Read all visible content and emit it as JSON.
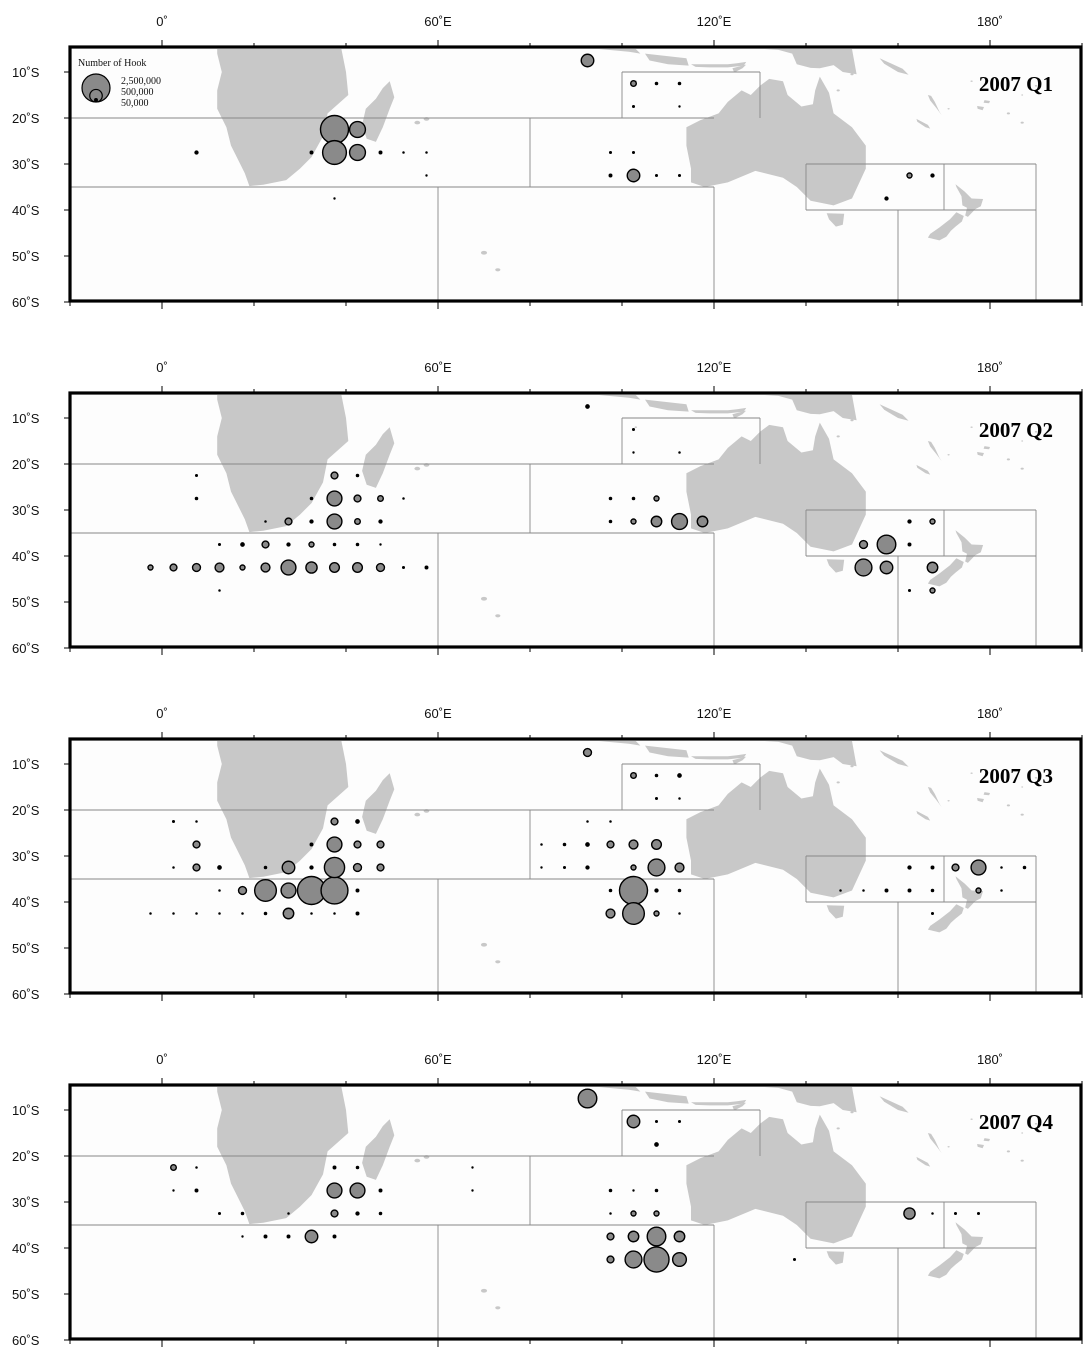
{
  "legend": {
    "title": "Number of Hook",
    "labels": [
      "2,500,000",
      "500,000",
      "50,000"
    ],
    "values": [
      2500000,
      500000,
      50000
    ]
  },
  "x_ticks": [
    "0˚",
    "60˚E",
    "120˚E",
    "180˚"
  ],
  "y_ticks": [
    "10˚S",
    "20˚S",
    "30˚S",
    "40˚S",
    "50˚S",
    "60˚S"
  ],
  "colors": {
    "land": "#c8c8c8",
    "bubble": "#8a8a8a",
    "frame": "#000000",
    "ocean": "#fdfdfd",
    "grid": "#888888"
  },
  "map_extent": {
    "lon": [
      -20,
      200
    ],
    "lat": [
      -5,
      -60
    ]
  },
  "panels": [
    {
      "title": "2007 Q1",
      "points": [
        [
          37.5,
          -22.5,
          2500000
        ],
        [
          42.5,
          -22.5,
          800000
        ],
        [
          37.5,
          -27.5,
          1800000
        ],
        [
          42.5,
          -27.5,
          800000
        ],
        [
          7.5,
          -27.5,
          60000
        ],
        [
          32.5,
          -27.5,
          50000
        ],
        [
          47.5,
          -27.5,
          50000
        ],
        [
          52.5,
          -27.5,
          20000
        ],
        [
          57.5,
          -27.5,
          20000
        ],
        [
          57.5,
          -32.5,
          15000
        ],
        [
          37.5,
          -37.5,
          15000
        ],
        [
          92.5,
          -7.5,
          500000
        ],
        [
          102.5,
          -12.5,
          100000
        ],
        [
          107.5,
          -12.5,
          40000
        ],
        [
          112.5,
          -12.5,
          40000
        ],
        [
          102.5,
          -17.5,
          30000
        ],
        [
          112.5,
          -17.5,
          15000
        ],
        [
          97.5,
          -27.5,
          30000
        ],
        [
          102.5,
          -27.5,
          30000
        ],
        [
          97.5,
          -32.5,
          50000
        ],
        [
          102.5,
          -32.5,
          500000
        ],
        [
          107.5,
          -32.5,
          30000
        ],
        [
          112.5,
          -32.5,
          30000
        ],
        [
          162.5,
          -32.5,
          80000
        ],
        [
          167.5,
          -32.5,
          60000
        ],
        [
          157.5,
          -37.5,
          60000
        ]
      ]
    },
    {
      "title": "2007 Q2",
      "points": [
        [
          92.5,
          -7.5,
          70000
        ],
        [
          102.5,
          -12.5,
          30000
        ],
        [
          102.5,
          -17.5,
          15000
        ],
        [
          112.5,
          -17.5,
          20000
        ],
        [
          7.5,
          -22.5,
          30000
        ],
        [
          37.5,
          -22.5,
          150000
        ],
        [
          42.5,
          -22.5,
          40000
        ],
        [
          7.5,
          -27.5,
          40000
        ],
        [
          32.5,
          -27.5,
          40000
        ],
        [
          37.5,
          -27.5,
          700000
        ],
        [
          42.5,
          -27.5,
          150000
        ],
        [
          47.5,
          -27.5,
          100000
        ],
        [
          52.5,
          -27.5,
          20000
        ],
        [
          22.5,
          -32.5,
          20000
        ],
        [
          27.5,
          -32.5,
          150000
        ],
        [
          32.5,
          -32.5,
          60000
        ],
        [
          37.5,
          -32.5,
          700000
        ],
        [
          42.5,
          -32.5,
          100000
        ],
        [
          47.5,
          -32.5,
          60000
        ],
        [
          12.5,
          -37.5,
          30000
        ],
        [
          17.5,
          -37.5,
          70000
        ],
        [
          22.5,
          -37.5,
          150000
        ],
        [
          27.5,
          -37.5,
          60000
        ],
        [
          32.5,
          -37.5,
          80000
        ],
        [
          37.5,
          -37.5,
          40000
        ],
        [
          42.5,
          -37.5,
          40000
        ],
        [
          47.5,
          -37.5,
          15000
        ],
        [
          -2.5,
          -42.5,
          80000
        ],
        [
          2.5,
          -42.5,
          150000
        ],
        [
          7.5,
          -42.5,
          200000
        ],
        [
          12.5,
          -42.5,
          250000
        ],
        [
          17.5,
          -42.5,
          80000
        ],
        [
          22.5,
          -42.5,
          250000
        ],
        [
          27.5,
          -42.5,
          700000
        ],
        [
          32.5,
          -42.5,
          400000
        ],
        [
          37.5,
          -42.5,
          300000
        ],
        [
          42.5,
          -42.5,
          300000
        ],
        [
          47.5,
          -42.5,
          200000
        ],
        [
          52.5,
          -42.5,
          30000
        ],
        [
          57.5,
          -42.5,
          50000
        ],
        [
          12.5,
          -47.5,
          20000
        ],
        [
          97.5,
          -27.5,
          40000
        ],
        [
          102.5,
          -27.5,
          40000
        ],
        [
          107.5,
          -27.5,
          80000
        ],
        [
          97.5,
          -32.5,
          40000
        ],
        [
          102.5,
          -32.5,
          80000
        ],
        [
          107.5,
          -32.5,
          350000
        ],
        [
          112.5,
          -32.5,
          800000
        ],
        [
          117.5,
          -32.5,
          350000
        ],
        [
          162.5,
          -32.5,
          60000
        ],
        [
          167.5,
          -32.5,
          80000
        ],
        [
          152.5,
          -37.5,
          200000
        ],
        [
          157.5,
          -37.5,
          1100000
        ],
        [
          162.5,
          -37.5,
          50000
        ],
        [
          152.5,
          -42.5,
          900000
        ],
        [
          157.5,
          -42.5,
          500000
        ],
        [
          167.5,
          -42.5,
          350000
        ],
        [
          162.5,
          -47.5,
          30000
        ],
        [
          167.5,
          -47.5,
          80000
        ]
      ]
    },
    {
      "title": "2007 Q3",
      "points": [
        [
          92.5,
          -7.5,
          200000
        ],
        [
          102.5,
          -12.5,
          100000
        ],
        [
          107.5,
          -12.5,
          40000
        ],
        [
          112.5,
          -12.5,
          70000
        ],
        [
          107.5,
          -17.5,
          30000
        ],
        [
          112.5,
          -17.5,
          20000
        ],
        [
          2.5,
          -22.5,
          30000
        ],
        [
          7.5,
          -22.5,
          20000
        ],
        [
          37.5,
          -22.5,
          150000
        ],
        [
          42.5,
          -22.5,
          70000
        ],
        [
          7.5,
          -27.5,
          150000
        ],
        [
          32.5,
          -27.5,
          50000
        ],
        [
          37.5,
          -27.5,
          700000
        ],
        [
          42.5,
          -27.5,
          150000
        ],
        [
          47.5,
          -27.5,
          150000
        ],
        [
          2.5,
          -32.5,
          20000
        ],
        [
          7.5,
          -32.5,
          150000
        ],
        [
          12.5,
          -32.5,
          70000
        ],
        [
          22.5,
          -32.5,
          40000
        ],
        [
          27.5,
          -32.5,
          500000
        ],
        [
          32.5,
          -32.5,
          60000
        ],
        [
          37.5,
          -32.5,
          1300000
        ],
        [
          42.5,
          -32.5,
          200000
        ],
        [
          47.5,
          -32.5,
          150000
        ],
        [
          12.5,
          -37.5,
          20000
        ],
        [
          17.5,
          -37.5,
          200000
        ],
        [
          22.5,
          -37.5,
          1500000
        ],
        [
          27.5,
          -37.5,
          700000
        ],
        [
          32.5,
          -37.5,
          2500000
        ],
        [
          37.5,
          -37.5,
          2300000
        ],
        [
          42.5,
          -37.5,
          50000
        ],
        [
          -2.5,
          -42.5,
          20000
        ],
        [
          2.5,
          -42.5,
          20000
        ],
        [
          7.5,
          -42.5,
          20000
        ],
        [
          12.5,
          -42.5,
          20000
        ],
        [
          17.5,
          -42.5,
          20000
        ],
        [
          22.5,
          -42.5,
          40000
        ],
        [
          27.5,
          -42.5,
          350000
        ],
        [
          32.5,
          -42.5,
          20000
        ],
        [
          37.5,
          -42.5,
          20000
        ],
        [
          42.5,
          -42.5,
          50000
        ],
        [
          92.5,
          -22.5,
          20000
        ],
        [
          97.5,
          -22.5,
          20000
        ],
        [
          82.5,
          -27.5,
          20000
        ],
        [
          87.5,
          -27.5,
          40000
        ],
        [
          92.5,
          -27.5,
          70000
        ],
        [
          97.5,
          -27.5,
          150000
        ],
        [
          102.5,
          -27.5,
          250000
        ],
        [
          107.5,
          -27.5,
          300000
        ],
        [
          82.5,
          -32.5,
          15000
        ],
        [
          87.5,
          -32.5,
          30000
        ],
        [
          92.5,
          -32.5,
          60000
        ],
        [
          102.5,
          -32.5,
          80000
        ],
        [
          107.5,
          -32.5,
          900000
        ],
        [
          112.5,
          -32.5,
          250000
        ],
        [
          97.5,
          -37.5,
          40000
        ],
        [
          102.5,
          -37.5,
          2500000
        ],
        [
          107.5,
          -37.5,
          60000
        ],
        [
          112.5,
          -37.5,
          40000
        ],
        [
          97.5,
          -42.5,
          250000
        ],
        [
          102.5,
          -42.5,
          1500000
        ],
        [
          107.5,
          -42.5,
          80000
        ],
        [
          112.5,
          -42.5,
          20000
        ],
        [
          162.5,
          -32.5,
          60000
        ],
        [
          167.5,
          -32.5,
          50000
        ],
        [
          172.5,
          -32.5,
          150000
        ],
        [
          177.5,
          -32.5,
          700000
        ],
        [
          182.5,
          -32.5,
          20000
        ],
        [
          187.5,
          -32.5,
          40000
        ],
        [
          147.5,
          -37.5,
          20000
        ],
        [
          152.5,
          -37.5,
          20000
        ],
        [
          157.5,
          -37.5,
          50000
        ],
        [
          162.5,
          -37.5,
          50000
        ],
        [
          167.5,
          -37.5,
          40000
        ],
        [
          177.5,
          -37.5,
          80000
        ],
        [
          182.5,
          -37.5,
          20000
        ],
        [
          167.5,
          -42.5,
          30000
        ]
      ]
    },
    {
      "title": "2007 Q4",
      "points": [
        [
          92.5,
          -7.5,
          1100000
        ],
        [
          102.5,
          -12.5,
          500000
        ],
        [
          107.5,
          -12.5,
          30000
        ],
        [
          112.5,
          -12.5,
          30000
        ],
        [
          107.5,
          -17.5,
          70000
        ],
        [
          2.5,
          -22.5,
          100000
        ],
        [
          7.5,
          -22.5,
          20000
        ],
        [
          37.5,
          -22.5,
          50000
        ],
        [
          42.5,
          -22.5,
          40000
        ],
        [
          67.5,
          -22.5,
          15000
        ],
        [
          2.5,
          -27.5,
          15000
        ],
        [
          7.5,
          -27.5,
          50000
        ],
        [
          37.5,
          -27.5,
          700000
        ],
        [
          42.5,
          -27.5,
          700000
        ],
        [
          47.5,
          -27.5,
          50000
        ],
        [
          67.5,
          -27.5,
          15000
        ],
        [
          12.5,
          -32.5,
          30000
        ],
        [
          17.5,
          -32.5,
          40000
        ],
        [
          27.5,
          -32.5,
          20000
        ],
        [
          37.5,
          -32.5,
          150000
        ],
        [
          42.5,
          -32.5,
          60000
        ],
        [
          47.5,
          -32.5,
          40000
        ],
        [
          17.5,
          -37.5,
          15000
        ],
        [
          22.5,
          -37.5,
          50000
        ],
        [
          27.5,
          -37.5,
          50000
        ],
        [
          32.5,
          -37.5,
          500000
        ],
        [
          37.5,
          -37.5,
          50000
        ],
        [
          97.5,
          -27.5,
          40000
        ],
        [
          102.5,
          -27.5,
          15000
        ],
        [
          107.5,
          -27.5,
          40000
        ],
        [
          97.5,
          -32.5,
          20000
        ],
        [
          102.5,
          -32.5,
          80000
        ],
        [
          107.5,
          -32.5,
          80000
        ],
        [
          97.5,
          -37.5,
          150000
        ],
        [
          102.5,
          -37.5,
          350000
        ],
        [
          107.5,
          -37.5,
          1100000
        ],
        [
          112.5,
          -37.5,
          350000
        ],
        [
          97.5,
          -42.5,
          150000
        ],
        [
          102.5,
          -42.5,
          900000
        ],
        [
          107.5,
          -42.5,
          2000000
        ],
        [
          112.5,
          -42.5,
          600000
        ],
        [
          137.5,
          -42.5,
          30000
        ],
        [
          162.5,
          -32.5,
          400000
        ],
        [
          167.5,
          -32.5,
          20000
        ],
        [
          172.5,
          -32.5,
          30000
        ],
        [
          177.5,
          -32.5,
          30000
        ]
      ]
    }
  ]
}
